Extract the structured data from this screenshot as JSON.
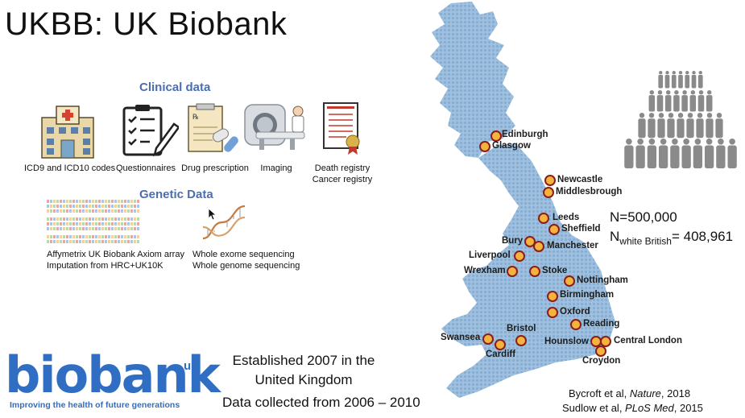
{
  "slide": {
    "title": "UKBB: UK Biobank",
    "clinical": {
      "heading": "Clinical data",
      "items": [
        {
          "label": "ICD9 and ICD10 codes",
          "icon": "hospital-icon"
        },
        {
          "label": "Questionnaires",
          "icon": "checklist-icon"
        },
        {
          "label": "Drug prescription",
          "icon": "prescription-icon"
        },
        {
          "label": "Imaging",
          "icon": "mri-scanner-icon"
        },
        {
          "label": "Death registry",
          "label2": "Cancer registry",
          "icon": "registry-document-icon"
        }
      ]
    },
    "genetic": {
      "heading": "Genetic Data",
      "array_line1": "Affymetrix UK Biobank Axiom array",
      "array_line2": "Imputation from HRC+UK10K",
      "seq_line1": "Whole exome sequencing",
      "seq_line2": "Whole genome sequencing"
    },
    "map": {
      "color": "#8fb3d6",
      "dot_fill": "#f3b33d",
      "dot_border": "#8a1d1d",
      "cities": {
        "edinburgh": "Edinburgh",
        "glasgow": "Glasgow",
        "newcastle": "Newcastle",
        "middlesbrough": "Middlesbrough",
        "leeds": "Leeds",
        "sheffield": "Sheffield",
        "bury": "Bury",
        "manchester": "Manchester",
        "liverpool": "Liverpool",
        "wrexham": "Wrexham",
        "stoke": "Stoke",
        "nottingham": "Nottingham",
        "birmingham": "Birmingham",
        "oxford": "Oxford",
        "reading": "Reading",
        "bristol": "Bristol",
        "swansea": "Swansea",
        "cardiff": "Cardiff",
        "hounslow": "Hounslow",
        "central_london": "Central London",
        "croydon": "Croydon"
      }
    },
    "stats": {
      "n_total": "N=500,000",
      "n_white_prefix": "N",
      "n_white_sub": "white British",
      "n_white_value": "= 408,961"
    },
    "established": {
      "line1": "Established 2007 in the",
      "line2": "United Kingdom",
      "line3": "Data collected from 2006 – 2010"
    },
    "citations": {
      "c1_authors": "Bycroft et al, ",
      "c1_journal": "Nature",
      "c1_year": ", 2018",
      "c2_authors": "Sudlow et al, ",
      "c2_journal": "PLoS Med",
      "c2_year": ", 2015"
    },
    "logo": {
      "wordmark": "biobank",
      "suffix": "uk",
      "tagline": "Improving the health of future generations",
      "color": "#2f6ec2"
    },
    "people_icon_color": "#8a8a8a"
  }
}
